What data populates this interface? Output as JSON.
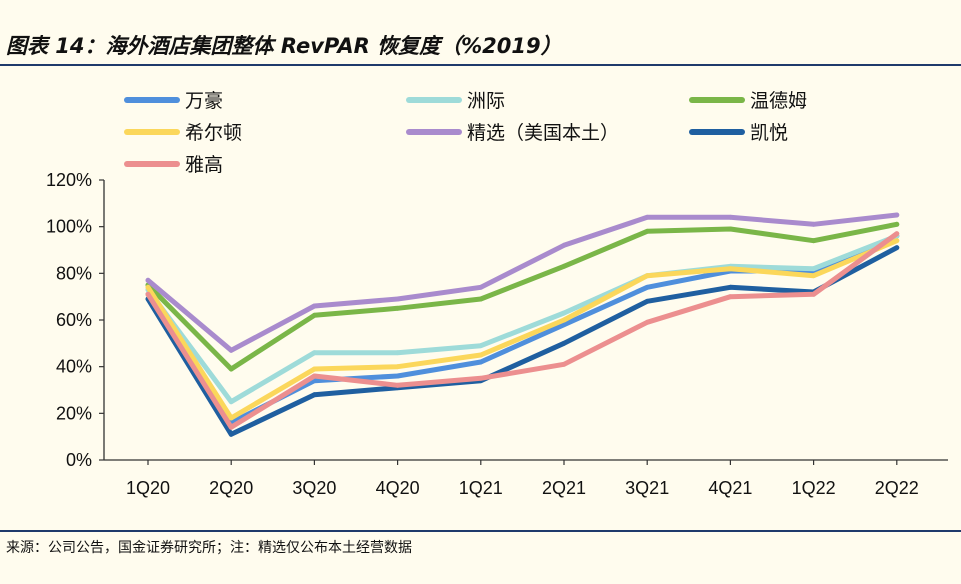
{
  "title": "图表 14：海外酒店集团整体 RevPAR 恢复度（%2019）",
  "source": "来源：公司公告，国金证券研究所；注：精选仅公布本土经营数据",
  "chart_data": {
    "type": "line",
    "categories": [
      "1Q20",
      "2Q20",
      "3Q20",
      "4Q20",
      "1Q21",
      "2Q21",
      "3Q21",
      "4Q21",
      "1Q22",
      "2Q22"
    ],
    "y_tick_labels": [
      "0%",
      "20%",
      "40%",
      "60%",
      "80%",
      "100%",
      "120%"
    ],
    "ylim": [
      0,
      120
    ],
    "grid": false,
    "legend_position": "top",
    "series": [
      {
        "name": "万豪",
        "color": "#4f8fdc",
        "values": [
          71,
          16,
          34,
          36,
          42,
          58,
          74,
          81,
          81,
          96
        ]
      },
      {
        "name": "洲际",
        "color": "#9edbd9",
        "values": [
          73,
          25,
          46,
          46,
          49,
          63,
          79,
          83,
          82,
          96
        ]
      },
      {
        "name": "温德姆",
        "color": "#7ab648",
        "values": [
          75,
          39,
          62,
          65,
          69,
          83,
          98,
          99,
          94,
          101
        ]
      },
      {
        "name": "希尔顿",
        "color": "#fbd75b",
        "values": [
          74,
          18,
          39,
          40,
          45,
          60,
          79,
          82,
          79,
          94
        ]
      },
      {
        "name": "精选（美国本土）",
        "color": "#a98bcd",
        "values": [
          77,
          47,
          66,
          69,
          74,
          92,
          104,
          104,
          101,
          105
        ]
      },
      {
        "name": "凯悦",
        "color": "#1f5fa0",
        "values": [
          69,
          11,
          28,
          31,
          34,
          50,
          68,
          74,
          72,
          91
        ]
      },
      {
        "name": "雅高",
        "color": "#ec8f8f",
        "values": [
          71,
          14,
          36,
          32,
          35,
          41,
          59,
          70,
          71,
          97
        ]
      }
    ]
  }
}
